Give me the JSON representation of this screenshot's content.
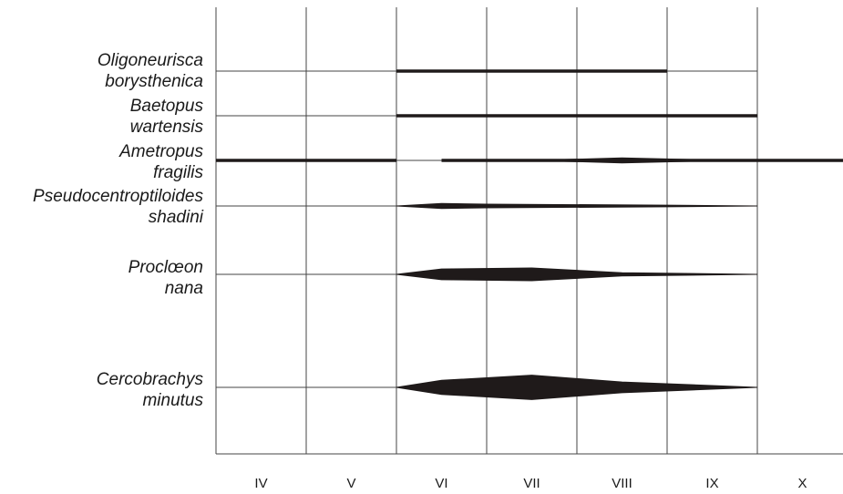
{
  "chart_data": {
    "type": "area",
    "title": "",
    "xlabel": "",
    "ylabel": "",
    "months": [
      "IV",
      "V",
      "VI",
      "VII",
      "VIII",
      "IX",
      "X"
    ],
    "x_range": [
      0,
      7
    ],
    "grid": true,
    "legend": "none",
    "colors": {
      "fill": "#1f1a1a",
      "grid": "#444444"
    },
    "species": [
      {
        "name_line1": "Oligoneurisca",
        "name_line2": "borysthenica",
        "kind": "line",
        "segments": [
          [
            2.0,
            5.0
          ]
        ]
      },
      {
        "name_line1": "Baetopus",
        "name_line2": "wartensis",
        "kind": "line",
        "segments": [
          [
            2.0,
            6.0
          ]
        ]
      },
      {
        "name_line1": "Ametropus",
        "name_line2": "fragilis",
        "kind": "mixed",
        "segments": [
          [
            0.0,
            2.0
          ],
          [
            2.5,
            7.0
          ]
        ],
        "profile": [
          [
            3.6,
            0.3
          ],
          [
            4.5,
            2.7
          ],
          [
            5.5,
            0.5
          ],
          [
            7.0,
            0.2
          ]
        ]
      },
      {
        "name_line1": "Pseudocentroptiloides",
        "name_line2": "shadini",
        "kind": "spindle",
        "profile": [
          [
            2.0,
            0.0
          ],
          [
            2.5,
            2.7
          ],
          [
            3.0,
            2.0
          ],
          [
            5.0,
            0.9
          ],
          [
            6.0,
            0.0
          ]
        ]
      },
      {
        "name_line1": "Proclœon",
        "name_line2": "nana",
        "kind": "spindle",
        "profile": [
          [
            2.0,
            0.0
          ],
          [
            2.5,
            5.9
          ],
          [
            3.5,
            7.0
          ],
          [
            4.5,
            1.8
          ],
          [
            6.0,
            0.0
          ]
        ]
      },
      {
        "name_line1": "Cercobrachys",
        "name_line2": "minutus",
        "kind": "spindle",
        "profile": [
          [
            2.0,
            0.0
          ],
          [
            2.5,
            7.7
          ],
          [
            3.5,
            13.4
          ],
          [
            4.5,
            5.9
          ],
          [
            6.0,
            0.0
          ]
        ]
      }
    ]
  }
}
